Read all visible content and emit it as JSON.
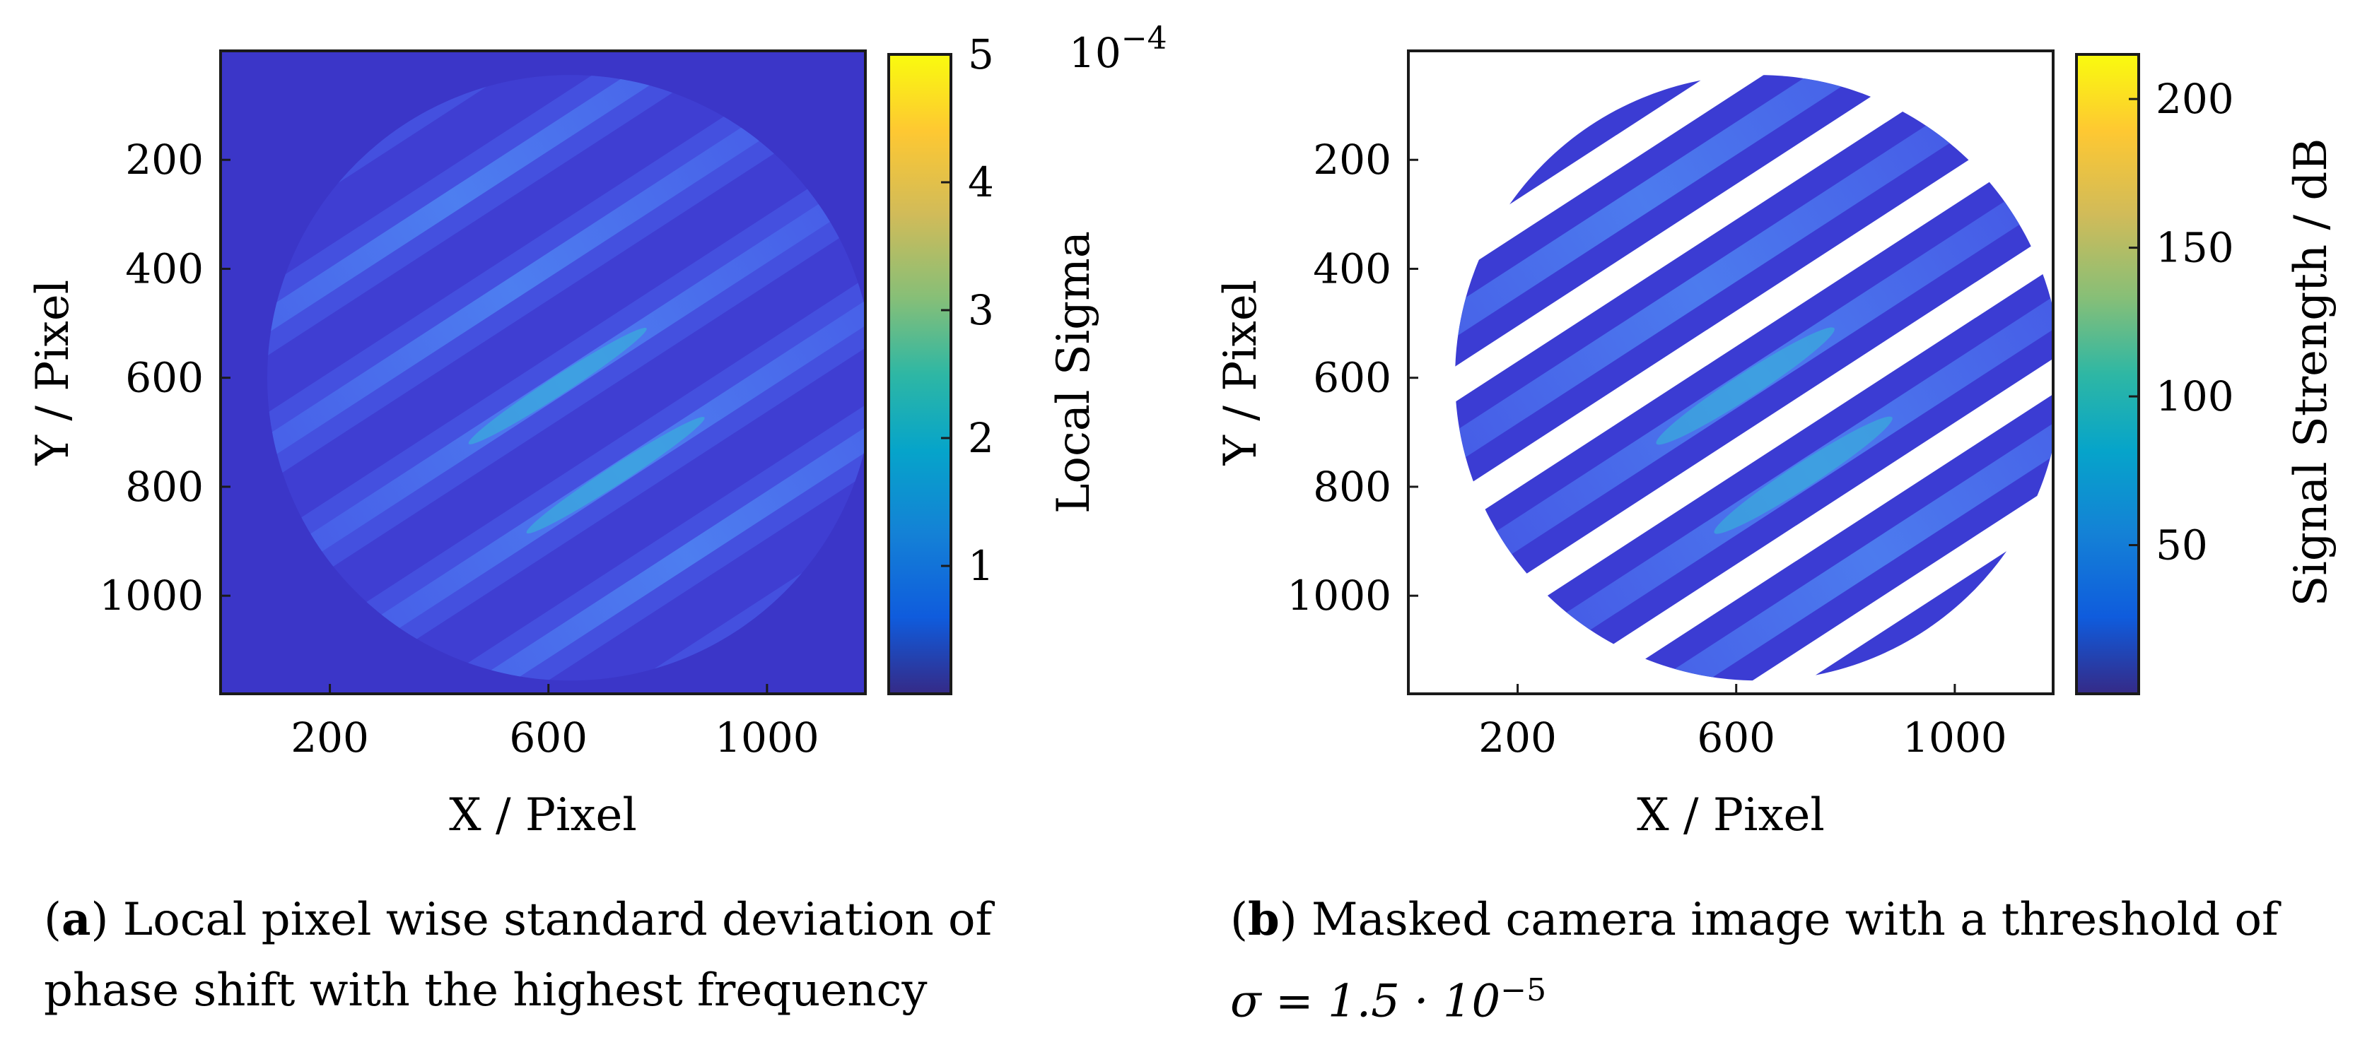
{
  "chart_data": [
    {
      "type": "heatmap",
      "panel": "a",
      "xlabel": "X / Pixel",
      "ylabel": "Y / Pixel",
      "xlim": [
        0,
        1180
      ],
      "ylim": [
        1180,
        0
      ],
      "x_ticks": [
        200,
        600,
        1000
      ],
      "y_ticks": [
        200,
        400,
        600,
        800,
        1000
      ],
      "colorbar": {
        "label": "Local Sigma",
        "range": [
          0,
          5
        ],
        "ticks": [
          1,
          2,
          3,
          4,
          5
        ],
        "exponent_label": "10",
        "exponent": "−4"
      },
      "masked": false,
      "caption_label": "a",
      "caption": "Local pixel wise standard deviation of phase shift with the highest frequency"
    },
    {
      "type": "heatmap",
      "panel": "b",
      "xlabel": "X / Pixel",
      "ylabel": "Y / Pixel",
      "xlim": [
        0,
        1180
      ],
      "ylim": [
        1180,
        0
      ],
      "x_ticks": [
        200,
        600,
        1000
      ],
      "y_ticks": [
        200,
        400,
        600,
        800,
        1000
      ],
      "colorbar": {
        "label": "Signal Strength / dB",
        "range": [
          0,
          215
        ],
        "ticks": [
          50,
          100,
          150,
          200
        ]
      },
      "masked": true,
      "caption_label": "b",
      "caption_text": "Masked camera image with a threshold of",
      "caption_math": "σ = 1.5 · 10",
      "caption_math_exp": "−5"
    }
  ],
  "colors": {
    "background_low": "#3b36c8",
    "stripe_mid": "#4a73f0",
    "stripe_high": "#35b7d9",
    "hot_spot": "#7fd36a"
  }
}
